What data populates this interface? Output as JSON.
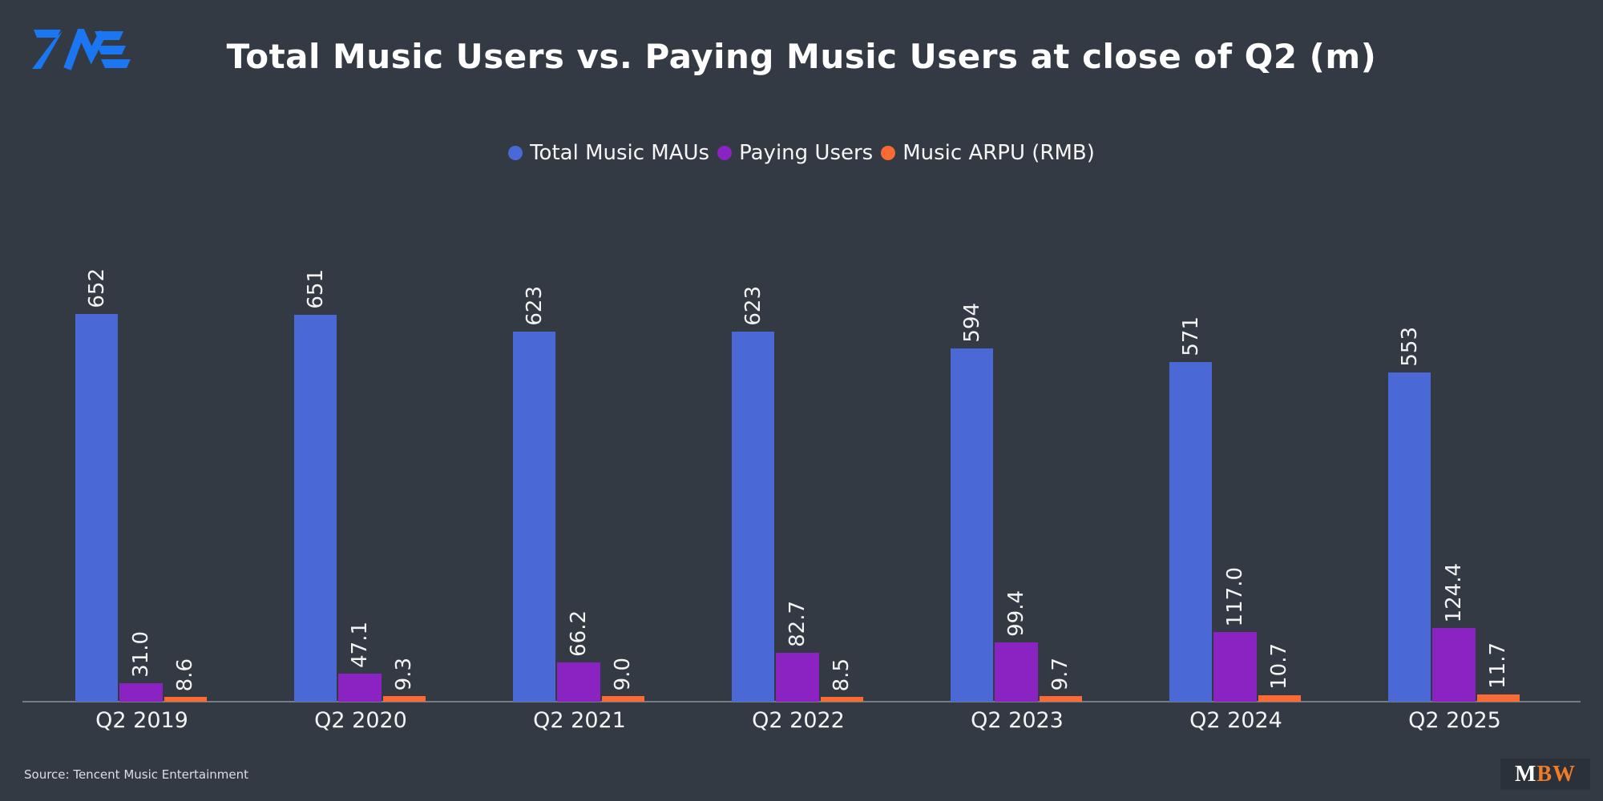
{
  "page": {
    "background_color": "#333A44"
  },
  "header": {
    "logo_alt": "TME",
    "logo_color": "#1B76F2",
    "title": "Total Music Users vs. Paying Music Users at close of Q2 (m)"
  },
  "chart_data": {
    "type": "bar",
    "title": "Total Music Users vs. Paying Music Users at close of Q2 (m)",
    "categories": [
      "Q2 2019",
      "Q2 2020",
      "Q2 2021",
      "Q2 2022",
      "Q2 2023",
      "Q2 2024",
      "Q2 2025"
    ],
    "series": [
      {
        "name": "Total Music MAUs",
        "color": "#4A69D6",
        "values": [
          652,
          651,
          623,
          623,
          594,
          571,
          553
        ],
        "labels": [
          "652",
          "651",
          "623",
          "623",
          "594",
          "571",
          "553"
        ]
      },
      {
        "name": "Paying Users",
        "color": "#8B22C2",
        "values": [
          31.0,
          47.1,
          66.2,
          82.7,
          99.4,
          117.0,
          124.4
        ],
        "labels": [
          "31.0",
          "47.1",
          "66.2",
          "82.7",
          "99.4",
          "117.0",
          "124.4"
        ]
      },
      {
        "name": "Music ARPU (RMB)",
        "color": "#FA6A35",
        "values": [
          8.6,
          9.3,
          9.0,
          8.5,
          9.7,
          10.7,
          11.7
        ],
        "labels": [
          "8.6",
          "9.3",
          "9.0",
          "8.5",
          "9.7",
          "10.7",
          "11.7"
        ]
      }
    ],
    "ylim": [
      0,
      700
    ],
    "grid": false,
    "legend_position": "top-center",
    "value_label_rotation_deg": 90,
    "x_axis_line": true
  },
  "footer": {
    "source": "Source: Tencent Music Entertainment",
    "brand_m": "M",
    "brand_bw": "BW",
    "brand_bw_color": "#F07C26"
  }
}
